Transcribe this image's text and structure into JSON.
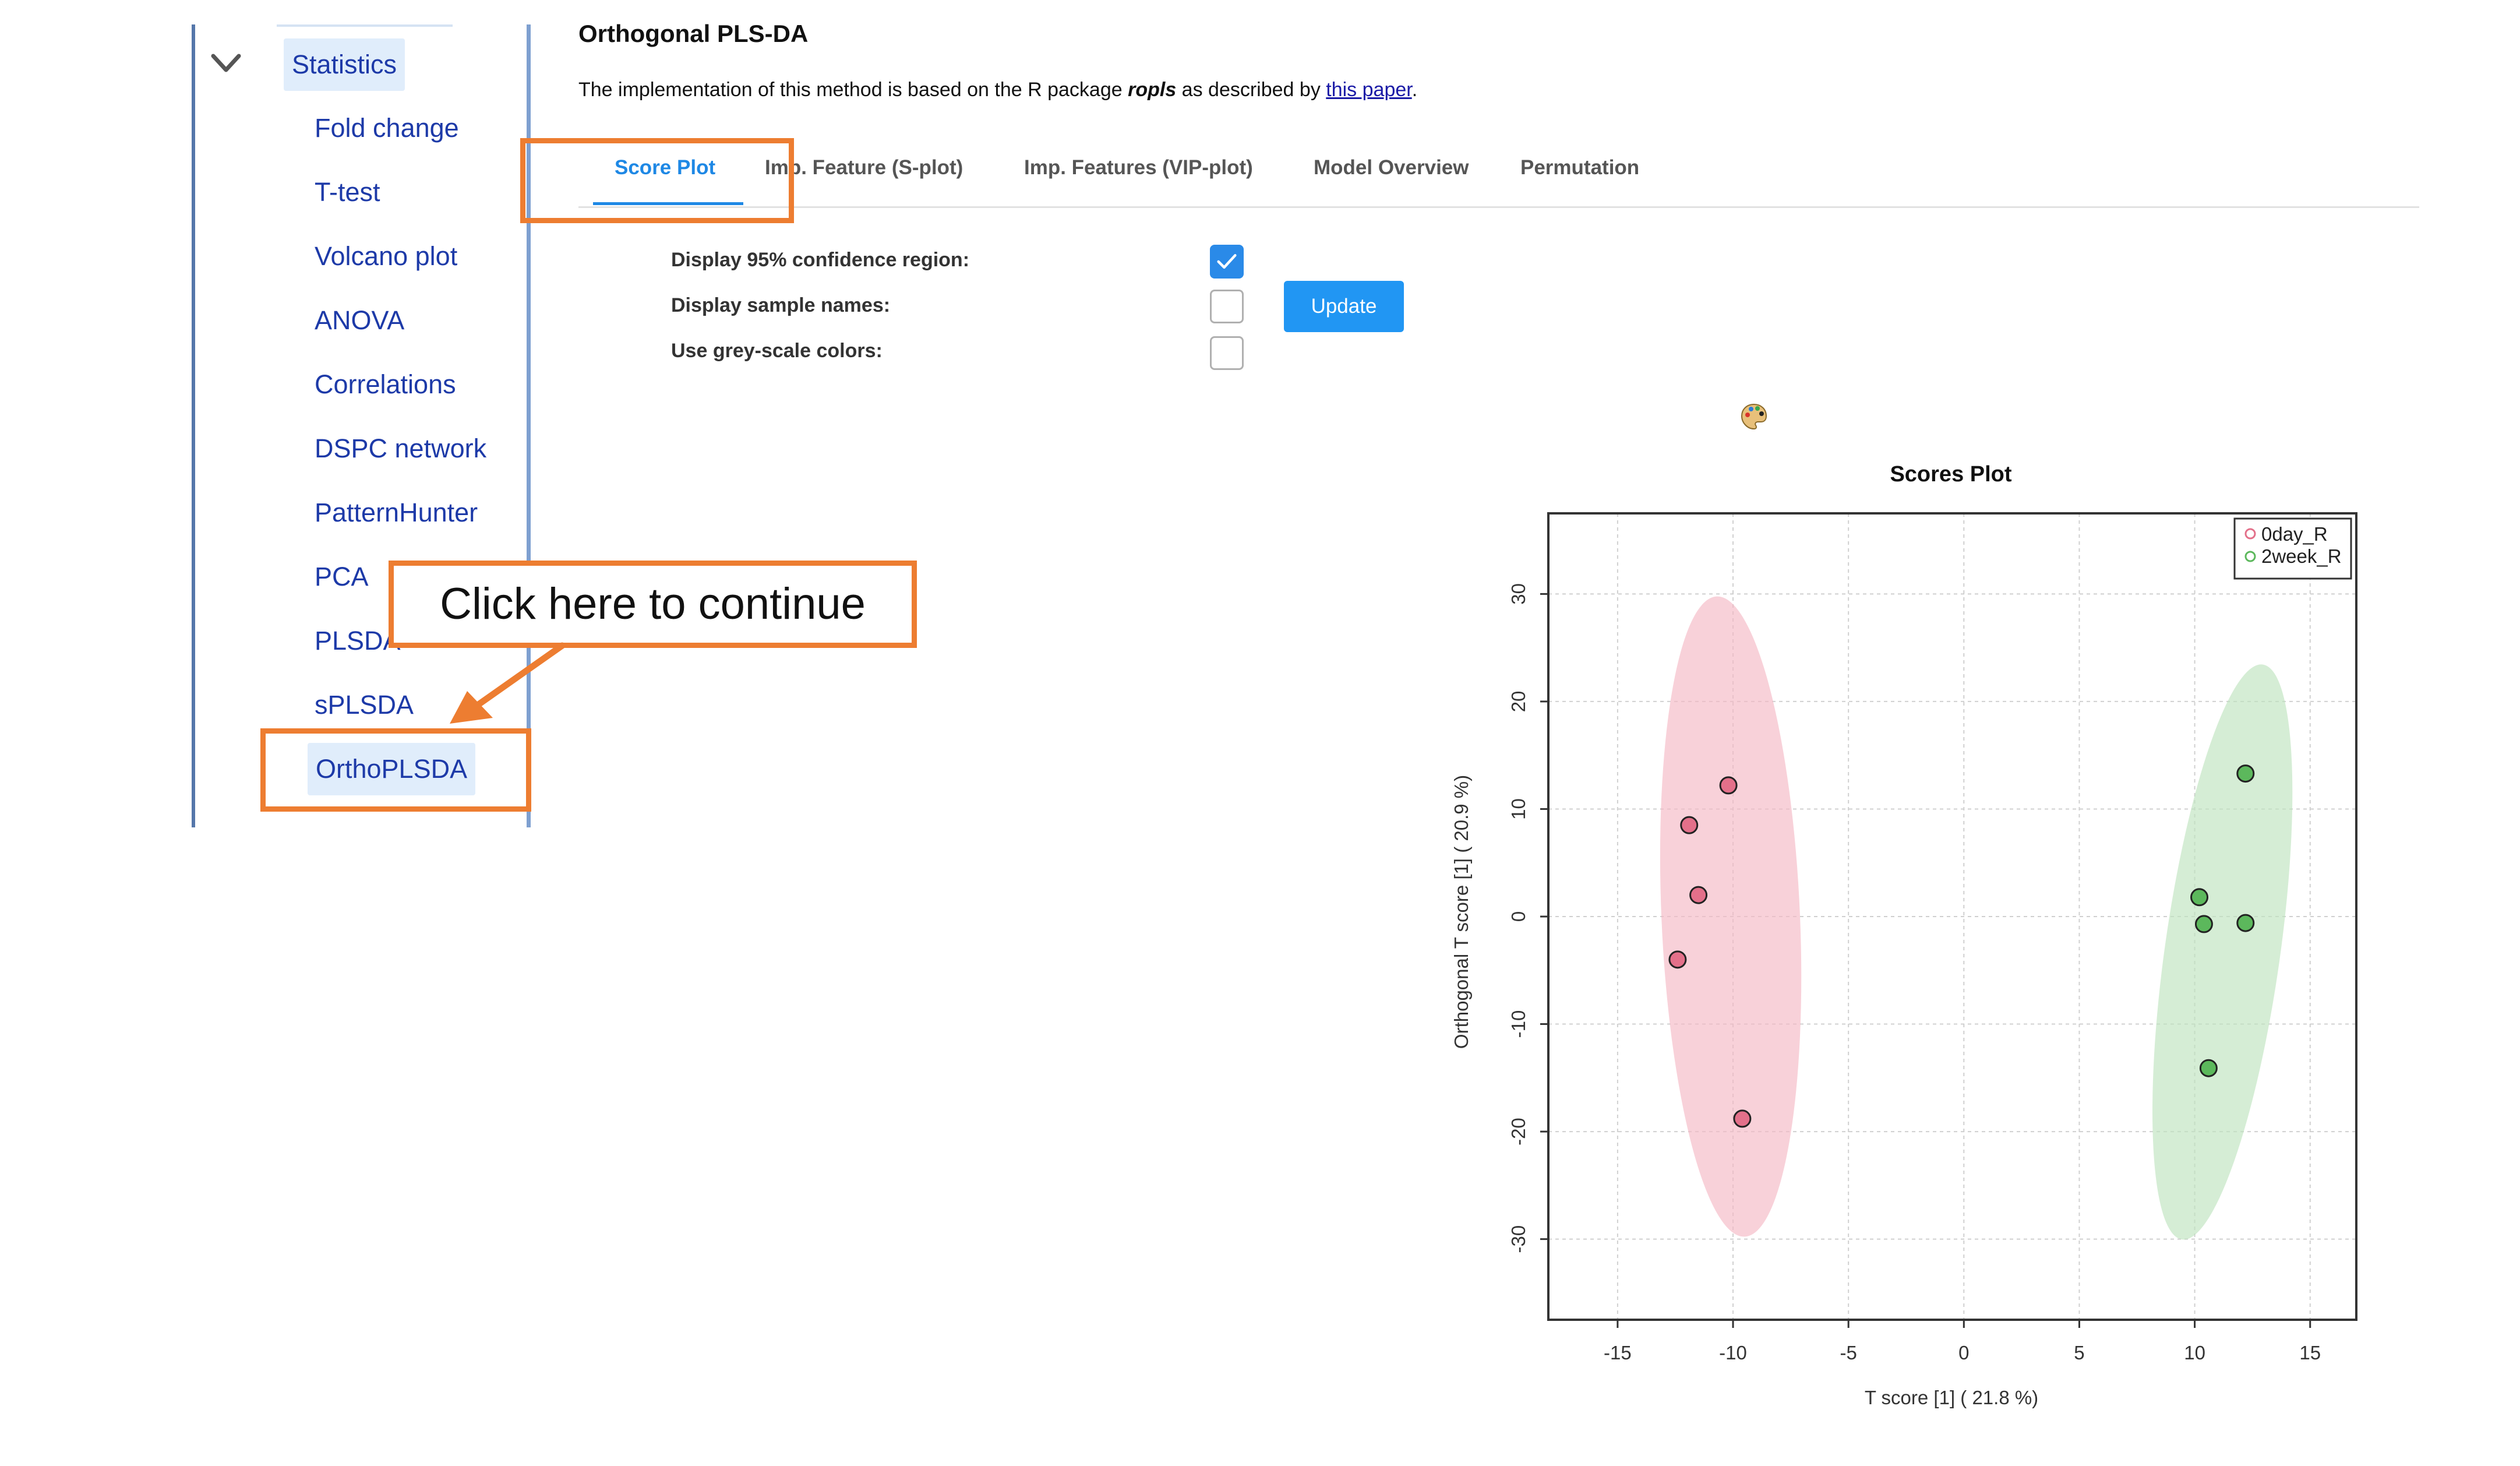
{
  "sidebar": {
    "group_label": "Statistics",
    "items": [
      {
        "label": "Fold change"
      },
      {
        "label": "T-test"
      },
      {
        "label": "Volcano plot"
      },
      {
        "label": "ANOVA"
      },
      {
        "label": "Correlations"
      },
      {
        "label": "DSPC network"
      },
      {
        "label": "PatternHunter"
      },
      {
        "label": "PCA"
      },
      {
        "label": "PLSDA"
      },
      {
        "label": "sPLSDA"
      },
      {
        "label": "OrthoPLSDA"
      }
    ],
    "active_item": "OrthoPLSDA"
  },
  "page": {
    "title": "Orthogonal PLS-DA",
    "desc_prefix": "The implementation of this method is based on the R package ",
    "desc_package": "ropls",
    "desc_mid": " as described by ",
    "desc_link": "this paper",
    "desc_suffix": "."
  },
  "tabs": [
    {
      "label": "Score Plot",
      "active": true
    },
    {
      "label": "Imp. Feature (S-plot)",
      "active": false
    },
    {
      "label": "Imp. Features (VIP-plot)",
      "active": false
    },
    {
      "label": "Model Overview",
      "active": false
    },
    {
      "label": "Permutation",
      "active": false
    }
  ],
  "options": [
    {
      "label": "Display 95% confidence region:",
      "checked": true
    },
    {
      "label": "Display sample names:",
      "checked": false
    },
    {
      "label": "Use grey-scale colors:",
      "checked": false
    }
  ],
  "update_label": "Update",
  "icons": {
    "collapse": "chevron-down-icon",
    "palette": "palette-icon"
  },
  "annotation": {
    "callout_text": "Click here to continue",
    "color": "#ed7d31"
  },
  "chart_data": {
    "type": "scatter",
    "title": "Scores Plot",
    "xlabel": "T score [1] ( 21.8 %)",
    "ylabel": "Orthogonal T score [1] ( 20.9 %)",
    "xlim": [
      -18,
      17
    ],
    "ylim": [
      -37.5,
      37.5
    ],
    "xticks": [
      -15,
      -10,
      -5,
      0,
      5,
      10,
      15
    ],
    "yticks": [
      -30,
      -20,
      -10,
      0,
      10,
      20,
      30
    ],
    "grid": true,
    "legend_position": "top-right",
    "series": [
      {
        "name": "0day_R",
        "color": "#e3708a",
        "fill": "#f4b8c4",
        "points": [
          [
            -10.2,
            12.2
          ],
          [
            -11.9,
            8.5
          ],
          [
            -11.5,
            2
          ],
          [
            -12.4,
            -4
          ],
          [
            -9.6,
            -18.8
          ]
        ],
        "ellipse": {
          "cx": -10.1,
          "cy": 0,
          "rx": 3.0,
          "ry": 29.8
        }
      },
      {
        "name": "2week_R",
        "color": "#5cb85c",
        "fill": "#bfe3bf",
        "points": [
          [
            12.2,
            13.3
          ],
          [
            10.2,
            1.8
          ],
          [
            10.4,
            -0.7
          ],
          [
            12.2,
            -0.6
          ],
          [
            10.6,
            -14.1
          ]
        ],
        "ellipse": {
          "cx": 11.2,
          "cy": -3.3,
          "rx": 2.5,
          "ry": 27
        }
      }
    ]
  }
}
